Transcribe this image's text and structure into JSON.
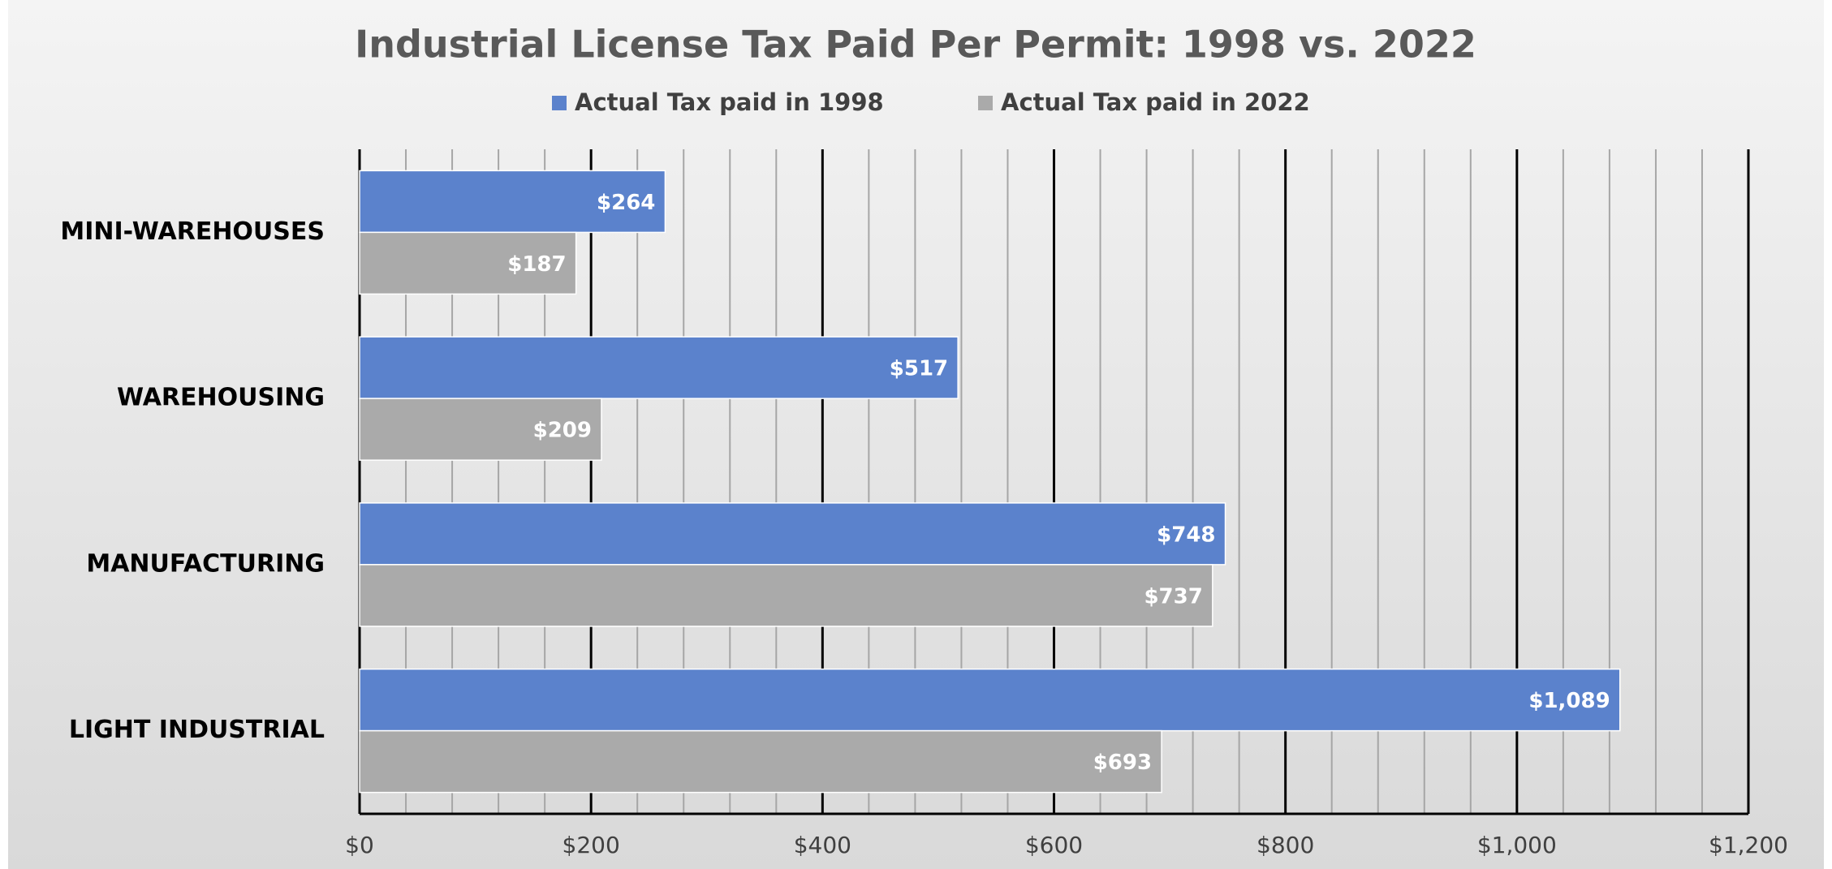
{
  "chart_data": {
    "type": "barh",
    "title": "Industrial License Tax Paid Per Permit: 1998 vs. 2022",
    "categories": [
      "MINI-WAREHOUSES",
      "WAREHOUSING",
      "MANUFACTURING",
      "LIGHT INDUSTRIAL"
    ],
    "series": [
      {
        "name": "Actual Tax paid in 1998",
        "color": "#5b82cc",
        "values": [
          264,
          517,
          748,
          1089
        ],
        "value_labels": [
          "$264",
          "$517",
          "$748",
          "$1,089"
        ]
      },
      {
        "name": "Actual Tax paid in 2022",
        "color": "#aaaaaa",
        "values": [
          187,
          209,
          737,
          693
        ],
        "value_labels": [
          "$187",
          "$209",
          "$737",
          "$693"
        ]
      }
    ],
    "xlim": [
      0,
      1200
    ],
    "xticks": [
      {
        "value": 0,
        "label": "$0"
      },
      {
        "value": 200,
        "label": "$200"
      },
      {
        "value": 400,
        "label": "$400"
      },
      {
        "value": 600,
        "label": "$600"
      },
      {
        "value": 800,
        "label": "$800"
      },
      {
        "value": 1000,
        "label": "$1,000"
      },
      {
        "value": 1200,
        "label": "$1,200"
      }
    ],
    "grid": true,
    "legend": "top"
  }
}
